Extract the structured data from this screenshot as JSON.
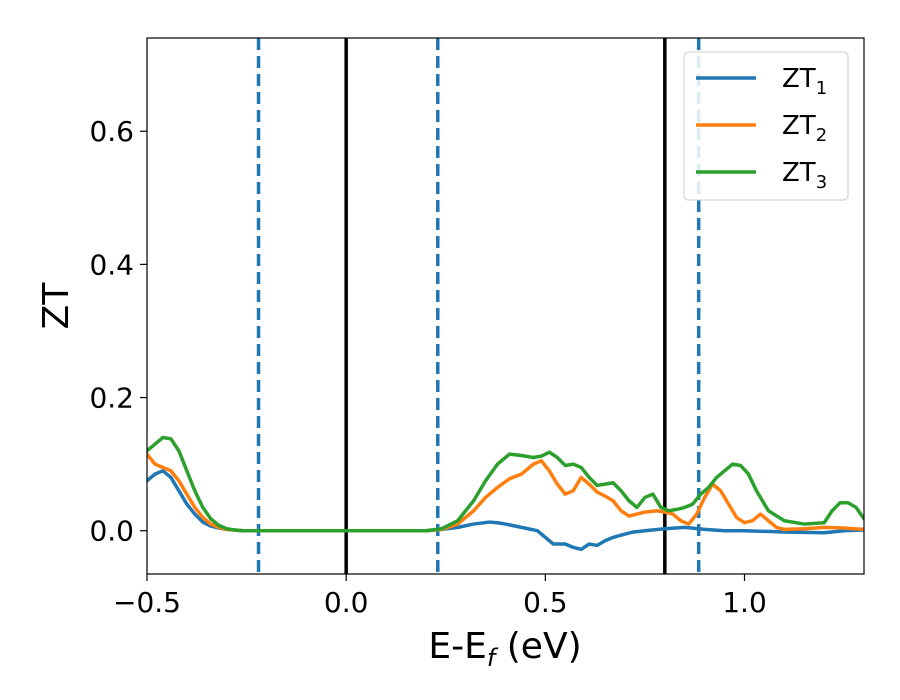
{
  "chart_data": {
    "type": "line",
    "xlabel": "E-E",
    "xlabel_subscript": "f",
    "xlabel_unit": " (eV)",
    "ylabel": "ZT",
    "xlim": [
      -0.5,
      1.3
    ],
    "ylim": [
      -0.065,
      0.74
    ],
    "x_ticks": [
      -0.5,
      0.0,
      0.5,
      1.0
    ],
    "x_tick_labels": [
      "−0.5",
      "0.0",
      "0.5",
      "1.0"
    ],
    "y_ticks": [
      0.0,
      0.2,
      0.4,
      0.6
    ],
    "y_tick_labels": [
      "0.0",
      "0.2",
      "0.4",
      "0.6"
    ],
    "grid": false,
    "legend_position": "top-right",
    "vlines_solid": [
      0.0,
      0.8
    ],
    "vlines_dashed": [
      -0.22,
      0.23,
      0.885
    ],
    "series": [
      {
        "name": "ZT",
        "subscript": "1",
        "color": "#1f77b4",
        "x": [
          -0.5,
          -0.48,
          -0.46,
          -0.44,
          -0.42,
          -0.4,
          -0.38,
          -0.36,
          -0.34,
          -0.32,
          -0.3,
          -0.28,
          -0.26,
          -0.24,
          -0.22,
          -0.2,
          0.0,
          0.2,
          0.24,
          0.28,
          0.32,
          0.36,
          0.38,
          0.4,
          0.44,
          0.48,
          0.5,
          0.52,
          0.55,
          0.57,
          0.59,
          0.61,
          0.63,
          0.65,
          0.67,
          0.7,
          0.72,
          0.75,
          0.8,
          0.85,
          0.9,
          0.95,
          1.0,
          1.1,
          1.2,
          1.25,
          1.3
        ],
        "y": [
          0.075,
          0.085,
          0.09,
          0.08,
          0.06,
          0.04,
          0.025,
          0.013,
          0.007,
          0.004,
          0.002,
          0.001,
          0.0,
          0.0,
          0.0,
          0.0,
          0.0,
          0.0,
          0.002,
          0.005,
          0.01,
          0.013,
          0.012,
          0.01,
          0.005,
          0.0,
          -0.01,
          -0.02,
          -0.02,
          -0.025,
          -0.028,
          -0.02,
          -0.022,
          -0.015,
          -0.01,
          -0.005,
          -0.002,
          0.0,
          0.003,
          0.005,
          0.002,
          0.0,
          0.0,
          -0.002,
          -0.003,
          0.0,
          0.001
        ]
      },
      {
        "name": "ZT",
        "subscript": "2",
        "color": "#ff7f0e",
        "x": [
          -0.5,
          -0.48,
          -0.46,
          -0.44,
          -0.42,
          -0.4,
          -0.38,
          -0.36,
          -0.34,
          -0.32,
          -0.3,
          -0.28,
          -0.26,
          -0.24,
          -0.22,
          -0.2,
          0.0,
          0.2,
          0.24,
          0.28,
          0.32,
          0.35,
          0.38,
          0.41,
          0.44,
          0.47,
          0.49,
          0.51,
          0.53,
          0.55,
          0.57,
          0.59,
          0.61,
          0.63,
          0.65,
          0.67,
          0.69,
          0.71,
          0.73,
          0.75,
          0.78,
          0.8,
          0.82,
          0.84,
          0.86,
          0.88,
          0.9,
          0.92,
          0.94,
          0.96,
          0.98,
          1.0,
          1.02,
          1.04,
          1.06,
          1.08,
          1.1,
          1.15,
          1.2,
          1.25,
          1.3
        ],
        "y": [
          0.115,
          0.1,
          0.095,
          0.09,
          0.075,
          0.055,
          0.035,
          0.02,
          0.01,
          0.005,
          0.002,
          0.001,
          0.0,
          0.0,
          0.0,
          0.0,
          0.0,
          0.0,
          0.002,
          0.01,
          0.03,
          0.05,
          0.065,
          0.078,
          0.085,
          0.1,
          0.105,
          0.09,
          0.07,
          0.055,
          0.06,
          0.08,
          0.07,
          0.058,
          0.052,
          0.045,
          0.03,
          0.022,
          0.025,
          0.028,
          0.03,
          0.028,
          0.025,
          0.015,
          0.01,
          0.025,
          0.05,
          0.07,
          0.06,
          0.04,
          0.02,
          0.012,
          0.015,
          0.025,
          0.015,
          0.005,
          0.002,
          0.003,
          0.005,
          0.004,
          0.002
        ]
      },
      {
        "name": "ZT",
        "subscript": "3",
        "color": "#2ca02c",
        "x": [
          -0.5,
          -0.48,
          -0.46,
          -0.44,
          -0.42,
          -0.4,
          -0.38,
          -0.36,
          -0.34,
          -0.32,
          -0.3,
          -0.28,
          -0.26,
          -0.24,
          -0.22,
          -0.2,
          0.0,
          0.2,
          0.24,
          0.28,
          0.32,
          0.35,
          0.38,
          0.41,
          0.44,
          0.47,
          0.49,
          0.51,
          0.53,
          0.55,
          0.57,
          0.59,
          0.61,
          0.63,
          0.65,
          0.67,
          0.69,
          0.71,
          0.73,
          0.75,
          0.77,
          0.79,
          0.81,
          0.83,
          0.85,
          0.87,
          0.89,
          0.91,
          0.93,
          0.95,
          0.97,
          0.99,
          1.01,
          1.03,
          1.06,
          1.1,
          1.15,
          1.2,
          1.22,
          1.24,
          1.26,
          1.28,
          1.3
        ],
        "y": [
          0.12,
          0.13,
          0.14,
          0.138,
          0.12,
          0.09,
          0.06,
          0.035,
          0.018,
          0.008,
          0.003,
          0.001,
          0.0,
          0.0,
          0.0,
          0.0,
          0.0,
          0.0,
          0.003,
          0.015,
          0.045,
          0.075,
          0.1,
          0.115,
          0.113,
          0.11,
          0.112,
          0.118,
          0.11,
          0.098,
          0.1,
          0.095,
          0.08,
          0.068,
          0.07,
          0.072,
          0.06,
          0.045,
          0.035,
          0.05,
          0.055,
          0.035,
          0.03,
          0.032,
          0.035,
          0.04,
          0.055,
          0.065,
          0.08,
          0.09,
          0.1,
          0.098,
          0.085,
          0.06,
          0.03,
          0.015,
          0.01,
          0.012,
          0.03,
          0.042,
          0.042,
          0.035,
          0.018
        ]
      }
    ]
  }
}
